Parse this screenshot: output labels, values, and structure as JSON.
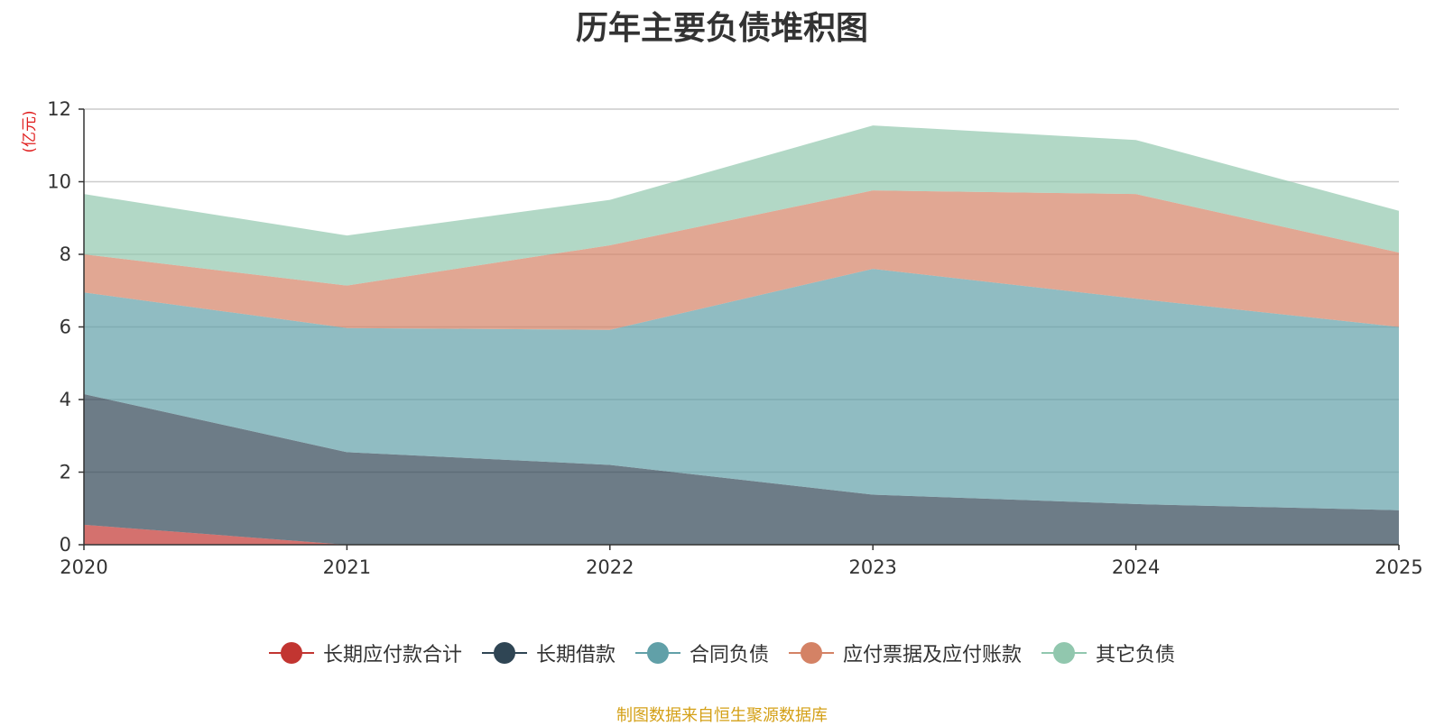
{
  "chart_data": {
    "type": "area",
    "stacked": true,
    "title": "历年主要负债堆积图",
    "ylabel": "(亿元)",
    "xlabel": "",
    "x": [
      "2020",
      "2021",
      "2022",
      "2023",
      "2024",
      "2025"
    ],
    "ylim": [
      0,
      12
    ],
    "yticks": [
      0,
      2,
      4,
      6,
      8,
      10,
      12
    ],
    "grid": true,
    "legend_position": "bottom",
    "series": [
      {
        "name": "长期应付款合计",
        "color": "#c23531",
        "values": [
          0.55,
          0.0,
          0.0,
          0.0,
          0.0,
          0.0
        ]
      },
      {
        "name": "长期借款",
        "color": "#2f4554",
        "values": [
          3.6,
          2.55,
          2.2,
          1.38,
          1.12,
          0.95
        ]
      },
      {
        "name": "合同负债",
        "color": "#61a0a8",
        "values": [
          2.8,
          3.42,
          3.72,
          6.22,
          5.66,
          5.05
        ]
      },
      {
        "name": "应付票据及应付账款",
        "color": "#d48265",
        "values": [
          1.05,
          1.17,
          2.33,
          2.16,
          2.88,
          2.05
        ]
      },
      {
        "name": "其它负债",
        "color": "#91c7ae",
        "values": [
          1.66,
          1.38,
          1.25,
          1.79,
          1.49,
          1.15
        ]
      }
    ]
  },
  "source_note": "制图数据来自恒生聚源数据库"
}
